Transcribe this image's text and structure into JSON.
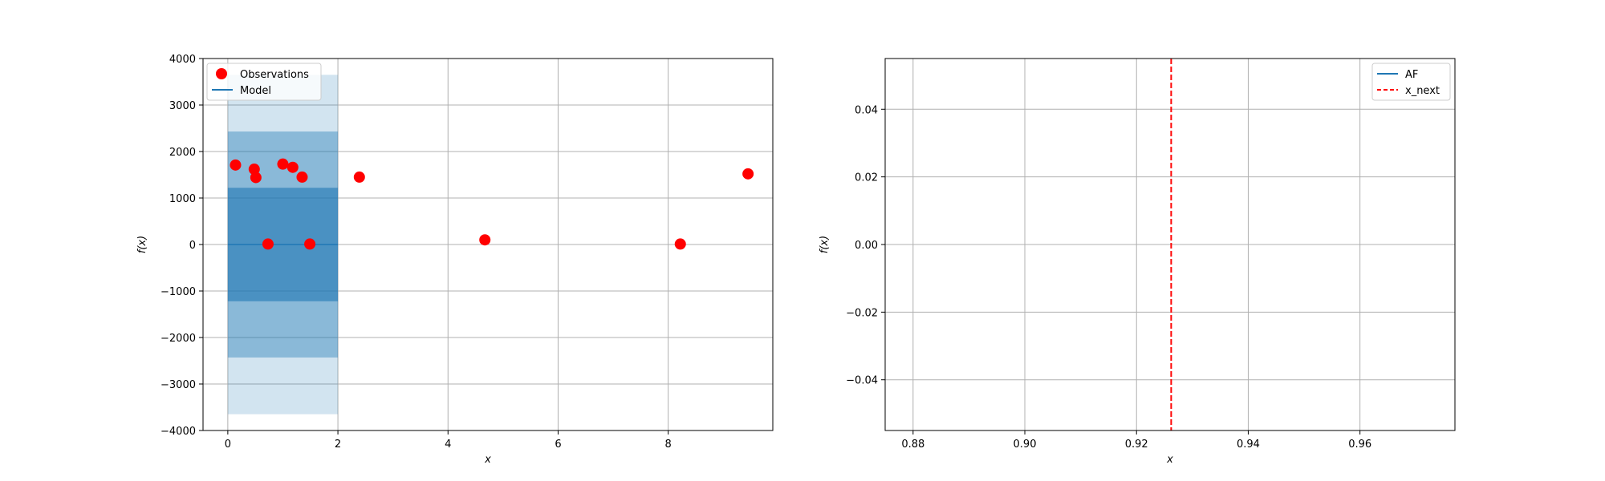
{
  "chart_data": [
    {
      "type": "scatter",
      "xlabel": "x",
      "ylabel": "f(x)",
      "xlim": [
        -0.45,
        9.9
      ],
      "ylim": [
        -4000,
        4000
      ],
      "xticks": [
        0,
        2,
        4,
        6,
        8
      ],
      "xtick_labels": [
        "0",
        "2",
        "4",
        "6",
        "8"
      ],
      "yticks": [
        -4000,
        -3000,
        -2000,
        -1000,
        0,
        1000,
        2000,
        3000,
        4000
      ],
      "ytick_labels": [
        "−4000",
        "−3000",
        "−2000",
        "−1000",
        "0",
        "1000",
        "2000",
        "3000",
        "4000"
      ],
      "grid": true,
      "legend_position": "top-left",
      "series": [
        {
          "name": "Observations",
          "kind": "scatter",
          "color": "#ff0000",
          "points": [
            {
              "x": 0.14,
              "y": 1710
            },
            {
              "x": 0.48,
              "y": 1620
            },
            {
              "x": 0.51,
              "y": 1440
            },
            {
              "x": 0.73,
              "y": 10
            },
            {
              "x": 1.0,
              "y": 1730
            },
            {
              "x": 1.18,
              "y": 1660
            },
            {
              "x": 1.35,
              "y": 1450
            },
            {
              "x": 1.49,
              "y": 10
            },
            {
              "x": 2.39,
              "y": 1450
            },
            {
              "x": 4.67,
              "y": 100
            },
            {
              "x": 8.22,
              "y": 10
            },
            {
              "x": 9.45,
              "y": 1520
            }
          ]
        },
        {
          "name": "Model",
          "kind": "line",
          "color": "#1f77b4",
          "x": [
            0,
            2
          ],
          "y": [
            0,
            0
          ]
        }
      ],
      "uncertainty_bands": [
        {
          "x": [
            0,
            2
          ],
          "lower": -3650,
          "upper": 3650,
          "color": "#1f77b4",
          "opacity": 0.2
        },
        {
          "x": [
            0,
            2
          ],
          "lower": -2430,
          "upper": 2430,
          "color": "#1f77b4",
          "opacity": 0.4
        },
        {
          "x": [
            0,
            2
          ],
          "lower": -1220,
          "upper": 1220,
          "color": "#1f77b4",
          "opacity": 0.6
        }
      ]
    },
    {
      "type": "line",
      "xlabel": "x",
      "ylabel": "f(x)",
      "xlim": [
        0.875,
        0.977
      ],
      "ylim": [
        -0.055,
        0.055
      ],
      "xticks": [
        0.88,
        0.9,
        0.92,
        0.94,
        0.96
      ],
      "xtick_labels": [
        "0.88",
        "0.90",
        "0.92",
        "0.94",
        "0.96"
      ],
      "yticks": [
        -0.04,
        -0.02,
        0.0,
        0.02,
        0.04
      ],
      "ytick_labels": [
        "−0.04",
        "−0.02",
        "0.00",
        "0.02",
        "0.04"
      ],
      "grid": true,
      "legend_position": "top-right",
      "series": [
        {
          "name": "AF",
          "kind": "line",
          "color": "#1f77b4",
          "x": [],
          "y": []
        },
        {
          "name": "x_next",
          "kind": "vline",
          "color": "#ff0000",
          "linestyle": "dashed",
          "x": 0.9262
        }
      ]
    }
  ]
}
